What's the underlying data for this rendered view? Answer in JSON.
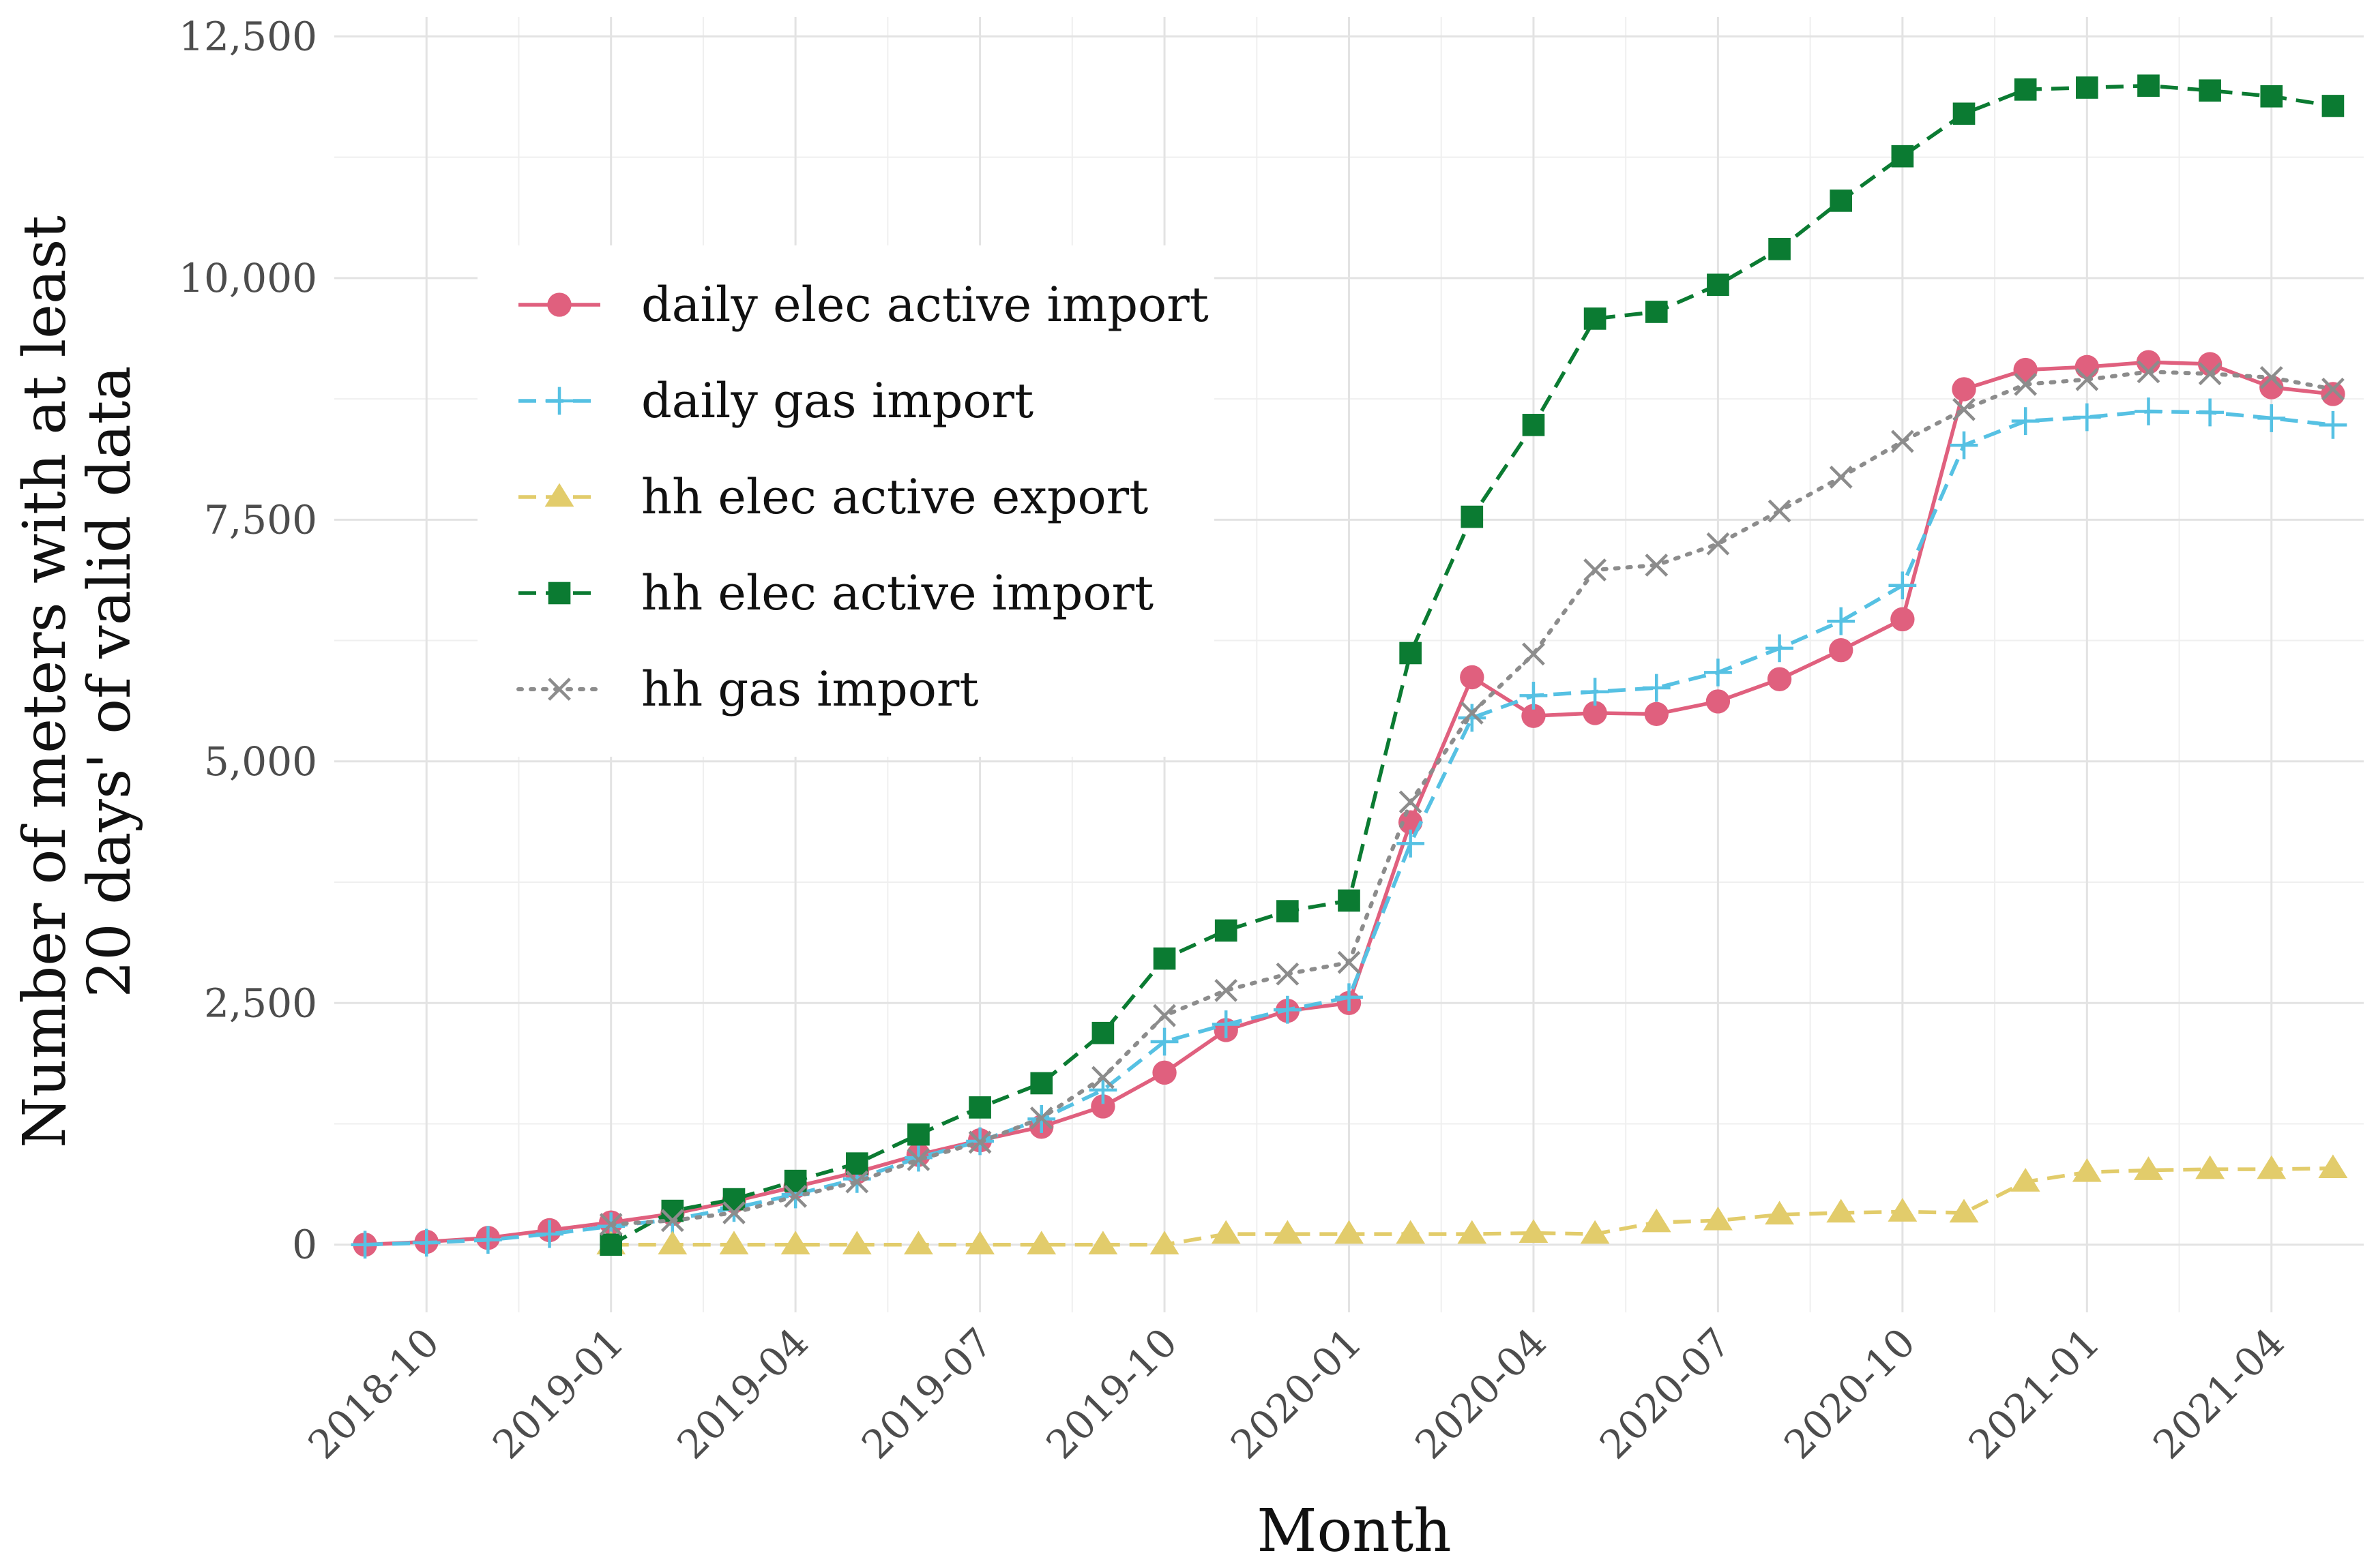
{
  "chart_data": {
    "type": "line",
    "title": "",
    "xlabel": "Month",
    "ylabel": [
      "Number of meters with at least",
      "20 days' of valid data"
    ],
    "x_start": "2018-09",
    "x_ticks": [
      "2018-10",
      "2019-01",
      "2019-04",
      "2019-07",
      "2019-10",
      "2020-01",
      "2020-04",
      "2020-07",
      "2020-10",
      "2021-01",
      "2021-04"
    ],
    "x_tick_index": [
      1,
      4,
      7,
      10,
      13,
      16,
      19,
      22,
      25,
      28,
      31
    ],
    "y_ticks": [
      "0",
      "2,500",
      "5,000",
      "7,500",
      "10,000",
      "12,500"
    ],
    "y_tick_values": [
      0,
      2500,
      5000,
      7500,
      10000,
      12500
    ],
    "ylim": [
      -700,
      12700
    ],
    "xlim": [
      -0.5,
      32.5
    ],
    "grid": true,
    "legend_position": "top-left",
    "series": [
      {
        "name": "daily elec active import",
        "color": "#e0607e",
        "linestyle": "solid",
        "marker": "circle",
        "start_index": 0,
        "values": [
          0,
          30,
          70,
          150,
          230,
          320,
          450,
          600,
          750,
          930,
          1080,
          1220,
          1430,
          1780,
          2220,
          2420,
          2500,
          4370,
          5870,
          5470,
          5500,
          5490,
          5620,
          5850,
          6150,
          6470,
          8850,
          9050,
          9080,
          9130,
          9110,
          8870,
          8800
        ]
      },
      {
        "name": "daily gas import",
        "color": "#56c1e3",
        "linestyle": "dashed",
        "marker": "plus",
        "start_index": 0,
        "values": [
          0,
          20,
          50,
          110,
          190,
          260,
          380,
          520,
          680,
          900,
          1070,
          1300,
          1600,
          2100,
          2280,
          2430,
          2560,
          4150,
          5450,
          5680,
          5720,
          5760,
          5920,
          6170,
          6450,
          6820,
          8270,
          8520,
          8560,
          8620,
          8610,
          8550,
          8480
        ]
      },
      {
        "name": "hh elec active export",
        "color": "#e2cc6b",
        "linestyle": "dashed",
        "marker": "triangle",
        "start_index": 4,
        "values": [
          0,
          0,
          0,
          0,
          0,
          0,
          0,
          0,
          0,
          0,
          110,
          110,
          110,
          110,
          110,
          120,
          110,
          230,
          250,
          310,
          330,
          340,
          330,
          650,
          750,
          770,
          780,
          780,
          790
        ]
      },
      {
        "name": "hh elec active import",
        "color": "#0b7b32",
        "linestyle": "dashed",
        "marker": "square",
        "start_index": 4,
        "values": [
          0,
          350,
          470,
          660,
          840,
          1140,
          1420,
          1670,
          2190,
          2960,
          3250,
          3450,
          3560,
          6120,
          7530,
          8480,
          9580,
          9650,
          9930,
          10300,
          10800,
          11260,
          11700,
          11950,
          11970,
          11990,
          11940,
          11880,
          11780
        ]
      },
      {
        "name": "hh gas import",
        "color": "#8c8c8c",
        "linestyle": "dotted",
        "marker": "x",
        "start_index": 4,
        "values": [
          210,
          250,
          330,
          500,
          650,
          880,
          1060,
          1310,
          1730,
          2370,
          2630,
          2800,
          2920,
          4580,
          5500,
          6110,
          6980,
          7030,
          7250,
          7590,
          7940,
          8310,
          8640,
          8900,
          8950,
          9030,
          9010,
          8970,
          8850
        ]
      }
    ]
  }
}
